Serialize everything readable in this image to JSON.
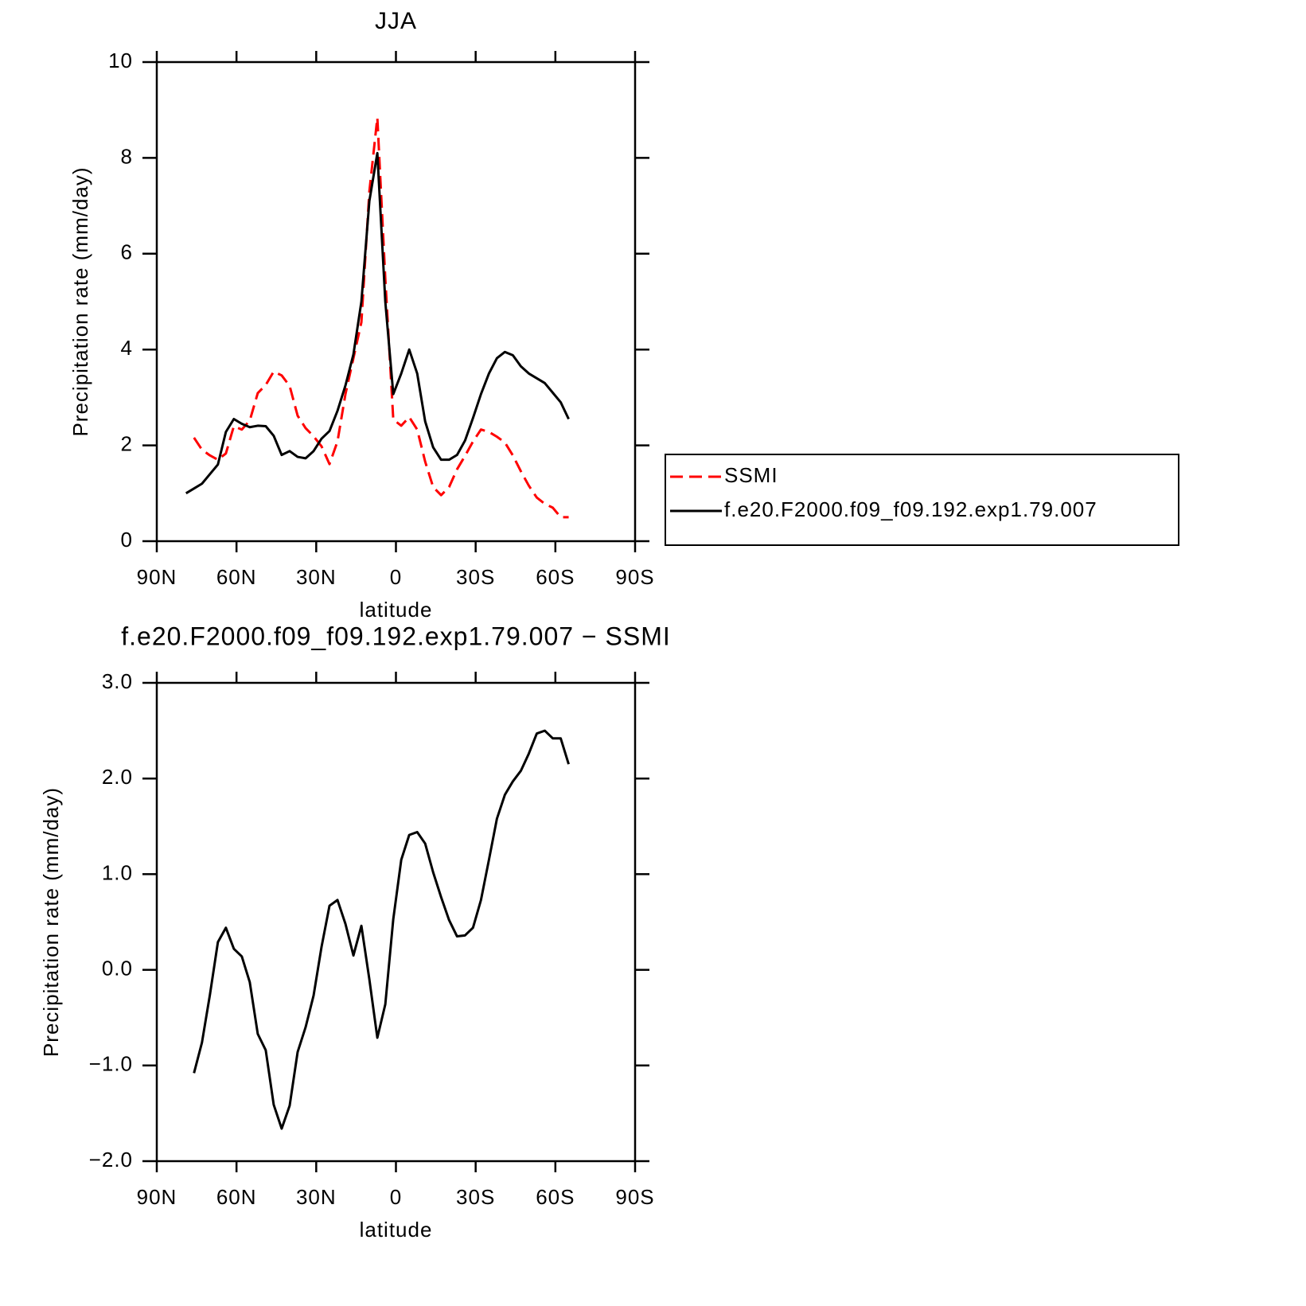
{
  "chart_data": [
    {
      "type": "line",
      "title": "JJA",
      "xlabel": "latitude",
      "ylabel": "Precipitation rate (mm/day)",
      "x": [
        79,
        76,
        73,
        70,
        67,
        64,
        61,
        58,
        55,
        52,
        49,
        46,
        43,
        40,
        37,
        34,
        31,
        28,
        25,
        22,
        19,
        16,
        13,
        10,
        7,
        4,
        1,
        -2,
        -5,
        -8,
        -11,
        -14,
        -17,
        -20,
        -23,
        -26,
        -29,
        -32,
        -35,
        -38,
        -41,
        -44,
        -47,
        -50,
        -53,
        -56,
        -59,
        -62,
        -65
      ],
      "xlim": [
        90,
        -90
      ],
      "xticks": [
        {
          "value": 90,
          "label": "90N"
        },
        {
          "value": 60,
          "label": "60N"
        },
        {
          "value": 30,
          "label": "30N"
        },
        0,
        {
          "value": -30,
          "label": "30S"
        },
        {
          "value": -60,
          "label": "60S"
        },
        {
          "value": -90,
          "label": "90S"
        }
      ],
      "ylim": [
        0,
        10
      ],
      "yticks": [
        0,
        2,
        4,
        6,
        8,
        10
      ],
      "legend": "right",
      "series": [
        {
          "name": "SSMI",
          "color": "#ff0000",
          "line_style": "dashed",
          "values": [
            null,
            2.16,
            1.91,
            1.79,
            1.7,
            1.83,
            2.4,
            2.33,
            2.52,
            3.09,
            3.26,
            3.54,
            3.46,
            3.24,
            2.62,
            2.36,
            2.19,
            1.98,
            1.61,
            2.08,
            3.07,
            3.82,
            4.57,
            7.3,
            8.84,
            5.48,
            2.54,
            2.41,
            2.59,
            2.33,
            1.66,
            1.13,
            0.96,
            1.13,
            1.5,
            1.78,
            2.08,
            2.33,
            2.28,
            2.18,
            2.06,
            1.79,
            1.46,
            1.16,
            0.91,
            0.78,
            0.7,
            0.5,
            0.5
          ]
        },
        {
          "name": "f.e20.F2000.f09_f09.192.exp1.79.007",
          "color": "#000000",
          "line_style": "solid",
          "values": [
            1.0,
            1.1,
            1.2,
            1.4,
            1.6,
            2.28,
            2.55,
            2.45,
            2.38,
            2.41,
            2.4,
            2.2,
            1.8,
            1.88,
            1.76,
            1.73,
            1.88,
            2.14,
            2.3,
            2.72,
            3.25,
            3.9,
            5.0,
            7.1,
            8.1,
            5.0,
            3.07,
            3.5,
            4.0,
            3.5,
            2.5,
            1.96,
            1.7,
            1.7,
            1.8,
            2.1,
            2.57,
            3.07,
            3.5,
            3.82,
            3.95,
            3.88,
            3.65,
            3.5,
            3.4,
            3.3,
            3.1,
            2.9,
            2.55
          ]
        }
      ]
    },
    {
      "type": "line",
      "title": "f.e20.F2000.f09_f09.192.exp1.79.007 − SSMI",
      "xlabel": "latitude",
      "ylabel": "Precipitation rate (mm/day)",
      "x": [
        79,
        76,
        73,
        70,
        67,
        64,
        61,
        58,
        55,
        52,
        49,
        46,
        43,
        40,
        37,
        34,
        31,
        28,
        25,
        22,
        19,
        16,
        13,
        10,
        7,
        4,
        1,
        -2,
        -5,
        -8,
        -11,
        -14,
        -17,
        -20,
        -23,
        -26,
        -29,
        -32,
        -35,
        -38,
        -41,
        -44,
        -47,
        -50,
        -53,
        -56,
        -59,
        -62,
        -65
      ],
      "xlim": [
        90,
        -90
      ],
      "xticks": [
        {
          "value": 90,
          "label": "90N"
        },
        {
          "value": 60,
          "label": "60N"
        },
        {
          "value": 30,
          "label": "30N"
        },
        0,
        {
          "value": -30,
          "label": "30S"
        },
        {
          "value": -60,
          "label": "60S"
        },
        {
          "value": -90,
          "label": "90S"
        }
      ],
      "ylim": [
        -2,
        3
      ],
      "yticks": [
        {
          "value": -2,
          "label": "−2.0"
        },
        {
          "value": -1,
          "label": "−1.0"
        },
        {
          "value": 0,
          "label": "0.0"
        },
        {
          "value": 1,
          "label": "1.0"
        },
        {
          "value": 2,
          "label": "2.0"
        },
        {
          "value": 3,
          "label": "3.0"
        }
      ],
      "series": [
        {
          "color": "#000000",
          "line_style": "solid",
          "values": [
            null,
            -1.08,
            -0.76,
            -0.26,
            0.29,
            0.44,
            0.22,
            0.14,
            -0.13,
            -0.67,
            -0.84,
            -1.41,
            -1.66,
            -1.42,
            -0.86,
            -0.6,
            -0.27,
            0.24,
            0.67,
            0.73,
            0.48,
            0.15,
            0.46,
            -0.1,
            -0.71,
            -0.36,
            0.53,
            1.15,
            1.41,
            1.44,
            1.32,
            1.02,
            0.76,
            0.52,
            0.35,
            0.36,
            0.44,
            0.73,
            1.15,
            1.58,
            1.83,
            1.97,
            2.08,
            2.26,
            2.47,
            2.5,
            2.42,
            2.42,
            2.15
          ]
        }
      ]
    }
  ]
}
